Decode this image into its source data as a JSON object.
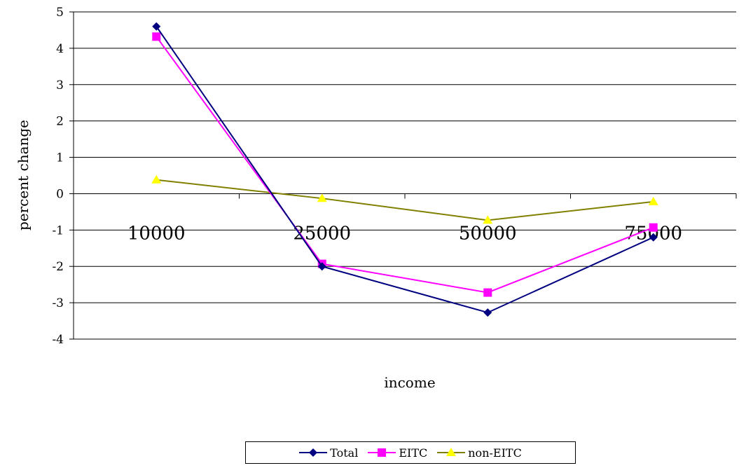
{
  "chart_data": {
    "type": "line",
    "title": "",
    "xlabel": "income",
    "ylabel": "percent change",
    "categories": [
      "10000",
      "25000",
      "50000",
      "75000"
    ],
    "ylim": [
      -4,
      5
    ],
    "yticks": [
      5,
      4,
      3,
      2,
      1,
      0,
      -1,
      -2,
      -3,
      -4
    ],
    "grid": true,
    "legend_position": "bottom",
    "series": [
      {
        "name": "Total",
        "values": [
          4.6,
          -2.0,
          -3.27,
          -1.2
        ],
        "color": "#000080",
        "marker": "diamond"
      },
      {
        "name": "EITC",
        "values": [
          4.32,
          -1.93,
          -2.72,
          -0.93
        ],
        "color": "#FF00FF",
        "marker": "square"
      },
      {
        "name": "non-EITC",
        "values": [
          0.38,
          -0.13,
          -0.73,
          -0.22
        ],
        "color": "#808000",
        "marker_color": "#FFFF00",
        "marker": "triangle"
      }
    ]
  }
}
